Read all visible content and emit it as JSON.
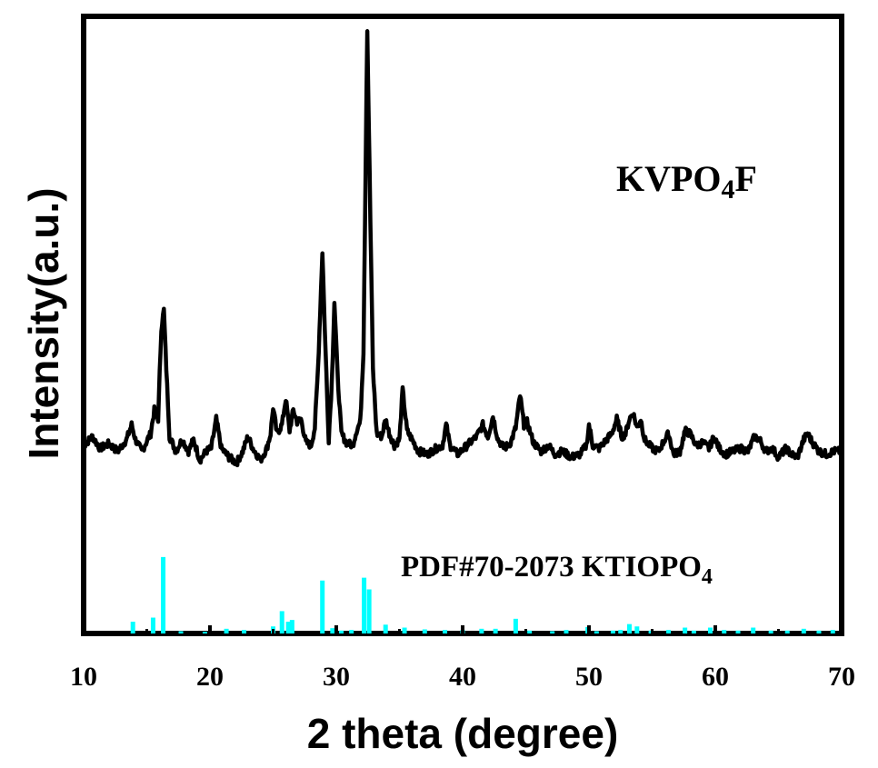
{
  "chart_data": {
    "type": "line",
    "xlabel": "2 theta (degree)",
    "ylabel": "Intensity(a.u.)",
    "xlim": [
      10,
      70
    ],
    "ylim": [
      0,
      105
    ],
    "xticks": [
      10,
      20,
      30,
      40,
      50,
      60,
      70
    ],
    "yticks_shown": false,
    "grid": false,
    "legend": "none",
    "annotations": {
      "sample": {
        "main": "KVPO",
        "sub": "4",
        "tail": "F"
      },
      "reference": {
        "main": "PDF#70-2073 KTIOPO",
        "sub": "4"
      }
    },
    "colors": {
      "sample": "#000000",
      "reference": "#00ffff",
      "axes": "#000000"
    },
    "series": [
      {
        "name": "KVPO4F",
        "baseline": 31.5,
        "points": [
          [
            10.0,
            32.0
          ],
          [
            10.7,
            33.5
          ],
          [
            11.3,
            31.5
          ],
          [
            12.0,
            32.3
          ],
          [
            12.7,
            31.0
          ],
          [
            13.4,
            33.0
          ],
          [
            13.8,
            35.5
          ],
          [
            14.1,
            33.0
          ],
          [
            14.6,
            31.0
          ],
          [
            15.3,
            34.0
          ],
          [
            15.6,
            38.0
          ],
          [
            15.9,
            36.5
          ],
          [
            16.15,
            52.0
          ],
          [
            16.35,
            55.0
          ],
          [
            16.55,
            45.0
          ],
          [
            16.8,
            33.5
          ],
          [
            17.3,
            31.0
          ],
          [
            17.8,
            33.0
          ],
          [
            18.3,
            31.0
          ],
          [
            18.7,
            33.0
          ],
          [
            19.2,
            29.5
          ],
          [
            19.7,
            31.0
          ],
          [
            20.1,
            31.5
          ],
          [
            20.5,
            36.5
          ],
          [
            20.9,
            31.5
          ],
          [
            21.5,
            30.0
          ],
          [
            22.1,
            29.0
          ],
          [
            22.6,
            31.0
          ],
          [
            23.0,
            33.5
          ],
          [
            23.4,
            31.5
          ],
          [
            24.0,
            29.5
          ],
          [
            24.5,
            31.5
          ],
          [
            24.8,
            34.0
          ],
          [
            25.0,
            38.5
          ],
          [
            25.3,
            34.0
          ],
          [
            25.7,
            35.5
          ],
          [
            26.0,
            40.0
          ],
          [
            26.3,
            34.5
          ],
          [
            26.6,
            38.0
          ],
          [
            26.9,
            36.0
          ],
          [
            27.2,
            36.5
          ],
          [
            27.6,
            32.5
          ],
          [
            28.0,
            32.0
          ],
          [
            28.3,
            35.0
          ],
          [
            28.55,
            45.0
          ],
          [
            28.9,
            65.0
          ],
          [
            29.15,
            48.0
          ],
          [
            29.4,
            33.0
          ],
          [
            29.65,
            43.0
          ],
          [
            29.85,
            56.5
          ],
          [
            30.1,
            44.0
          ],
          [
            30.4,
            34.0
          ],
          [
            30.8,
            32.5
          ],
          [
            31.3,
            32.0
          ],
          [
            31.6,
            34.5
          ],
          [
            31.9,
            36.0
          ],
          [
            32.15,
            48.0
          ],
          [
            32.45,
            103.0
          ],
          [
            32.7,
            70.0
          ],
          [
            32.9,
            45.0
          ],
          [
            33.2,
            34.0
          ],
          [
            33.6,
            33.5
          ],
          [
            33.9,
            36.5
          ],
          [
            34.2,
            34.0
          ],
          [
            34.6,
            32.0
          ],
          [
            35.0,
            33.0
          ],
          [
            35.25,
            41.5
          ],
          [
            35.6,
            34.5
          ],
          [
            36.0,
            33.0
          ],
          [
            36.5,
            31.0
          ],
          [
            37.2,
            30.5
          ],
          [
            37.9,
            31.5
          ],
          [
            38.4,
            32.0
          ],
          [
            38.7,
            35.5
          ],
          [
            39.0,
            32.0
          ],
          [
            39.6,
            30.5
          ],
          [
            40.1,
            31.5
          ],
          [
            40.6,
            32.5
          ],
          [
            41.1,
            33.5
          ],
          [
            41.6,
            35.5
          ],
          [
            42.0,
            33.5
          ],
          [
            42.4,
            37.0
          ],
          [
            42.8,
            33.0
          ],
          [
            43.3,
            31.5
          ],
          [
            43.8,
            32.5
          ],
          [
            44.2,
            35.0
          ],
          [
            44.55,
            40.5
          ],
          [
            44.85,
            35.5
          ],
          [
            45.1,
            36.0
          ],
          [
            45.6,
            32.5
          ],
          [
            46.2,
            31.0
          ],
          [
            46.8,
            32.0
          ],
          [
            47.3,
            30.5
          ],
          [
            47.9,
            31.0
          ],
          [
            48.6,
            30.0
          ],
          [
            49.3,
            30.5
          ],
          [
            49.8,
            32.0
          ],
          [
            50.0,
            35.5
          ],
          [
            50.3,
            32.0
          ],
          [
            50.8,
            31.5
          ],
          [
            51.4,
            33.0
          ],
          [
            51.8,
            34.0
          ],
          [
            52.2,
            36.5
          ],
          [
            52.6,
            33.5
          ],
          [
            52.9,
            34.0
          ],
          [
            53.2,
            36.5
          ],
          [
            53.5,
            37.5
          ],
          [
            53.8,
            35.0
          ],
          [
            54.1,
            36.5
          ],
          [
            54.4,
            33.0
          ],
          [
            55.0,
            31.5
          ],
          [
            55.5,
            31.0
          ],
          [
            56.0,
            33.0
          ],
          [
            56.3,
            34.0
          ],
          [
            56.7,
            30.5
          ],
          [
            57.2,
            31.0
          ],
          [
            57.6,
            34.5
          ],
          [
            58.0,
            34.0
          ],
          [
            58.5,
            32.0
          ],
          [
            59.0,
            32.5
          ],
          [
            59.5,
            31.5
          ],
          [
            59.9,
            33.5
          ],
          [
            60.3,
            31.5
          ],
          [
            60.8,
            30.5
          ],
          [
            61.4,
            31.0
          ],
          [
            62.0,
            31.5
          ],
          [
            62.6,
            31.0
          ],
          [
            63.1,
            33.5
          ],
          [
            63.5,
            33.0
          ],
          [
            64.0,
            31.0
          ],
          [
            64.5,
            31.5
          ],
          [
            65.0,
            30.0
          ],
          [
            65.6,
            31.5
          ],
          [
            66.0,
            30.5
          ],
          [
            66.5,
            30.0
          ],
          [
            67.0,
            33.0
          ],
          [
            67.3,
            34.0
          ],
          [
            67.7,
            32.5
          ],
          [
            68.2,
            31.0
          ],
          [
            68.8,
            30.5
          ],
          [
            69.4,
            31.0
          ],
          [
            70.0,
            31.0
          ]
        ]
      },
      {
        "name": "PDF#70-2073 KTIOPO4",
        "style": "sticks",
        "positions": [
          13.9,
          15.5,
          16.3,
          17.7,
          19.6,
          21.3,
          22.7,
          25.0,
          25.7,
          26.2,
          26.5,
          28.9,
          29.7,
          30.4,
          31.2,
          32.2,
          32.6,
          33.9,
          35.4,
          37.0,
          38.6,
          40.0,
          41.5,
          42.6,
          44.2,
          45.3,
          47.1,
          48.2,
          49.9,
          50.6,
          51.9,
          52.5,
          53.2,
          53.8,
          54.9,
          56.3,
          57.6,
          58.3,
          59.6,
          60.7,
          61.8,
          63.0,
          64.4,
          65.7,
          67.0,
          68.2,
          69.3
        ],
        "intensities": [
          2.0,
          2.7,
          13.0,
          0.4,
          0.3,
          0.8,
          0.6,
          1.2,
          3.8,
          2.0,
          2.3,
          9.0,
          0.9,
          0.5,
          0.6,
          9.5,
          7.5,
          1.5,
          1.0,
          0.7,
          0.6,
          0.6,
          0.8,
          0.8,
          2.5,
          0.5,
          0.4,
          0.6,
          1.1,
          0.4,
          0.5,
          0.6,
          1.6,
          1.2,
          0.5,
          0.6,
          1.0,
          0.5,
          1.0,
          0.6,
          0.5,
          1.0,
          0.5,
          0.5,
          0.8,
          0.5,
          0.6
        ]
      }
    ]
  }
}
